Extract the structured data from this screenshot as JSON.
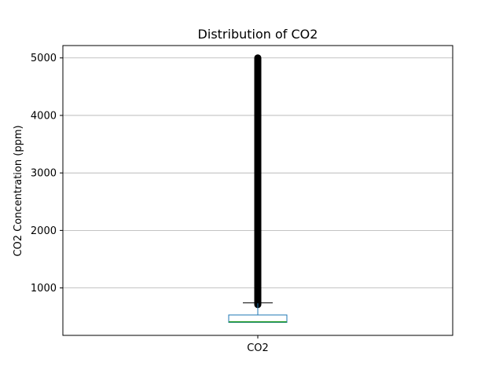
{
  "chart_data": {
    "type": "box",
    "title": "Distribution of CO2",
    "xlabel": "",
    "ylabel": "CO2 Concentration (ppm)",
    "categories": [
      "CO2"
    ],
    "ylim": [
      175,
      5215
    ],
    "yticks": [
      1000,
      2000,
      3000,
      4000,
      5000
    ],
    "grid": true,
    "series": [
      {
        "values": {
          "min": 400,
          "q1": 400,
          "median": 410,
          "q3": 530,
          "whisker_low": 400,
          "whisker_high": 740,
          "outlier_low": 710,
          "outlier_high": 5000
        }
      }
    ],
    "colors": {
      "box": "#1f77b4",
      "median": "#2ca02c",
      "whisker": "#000000",
      "outlier": "#000000",
      "grid": "#b0b0b0"
    }
  }
}
